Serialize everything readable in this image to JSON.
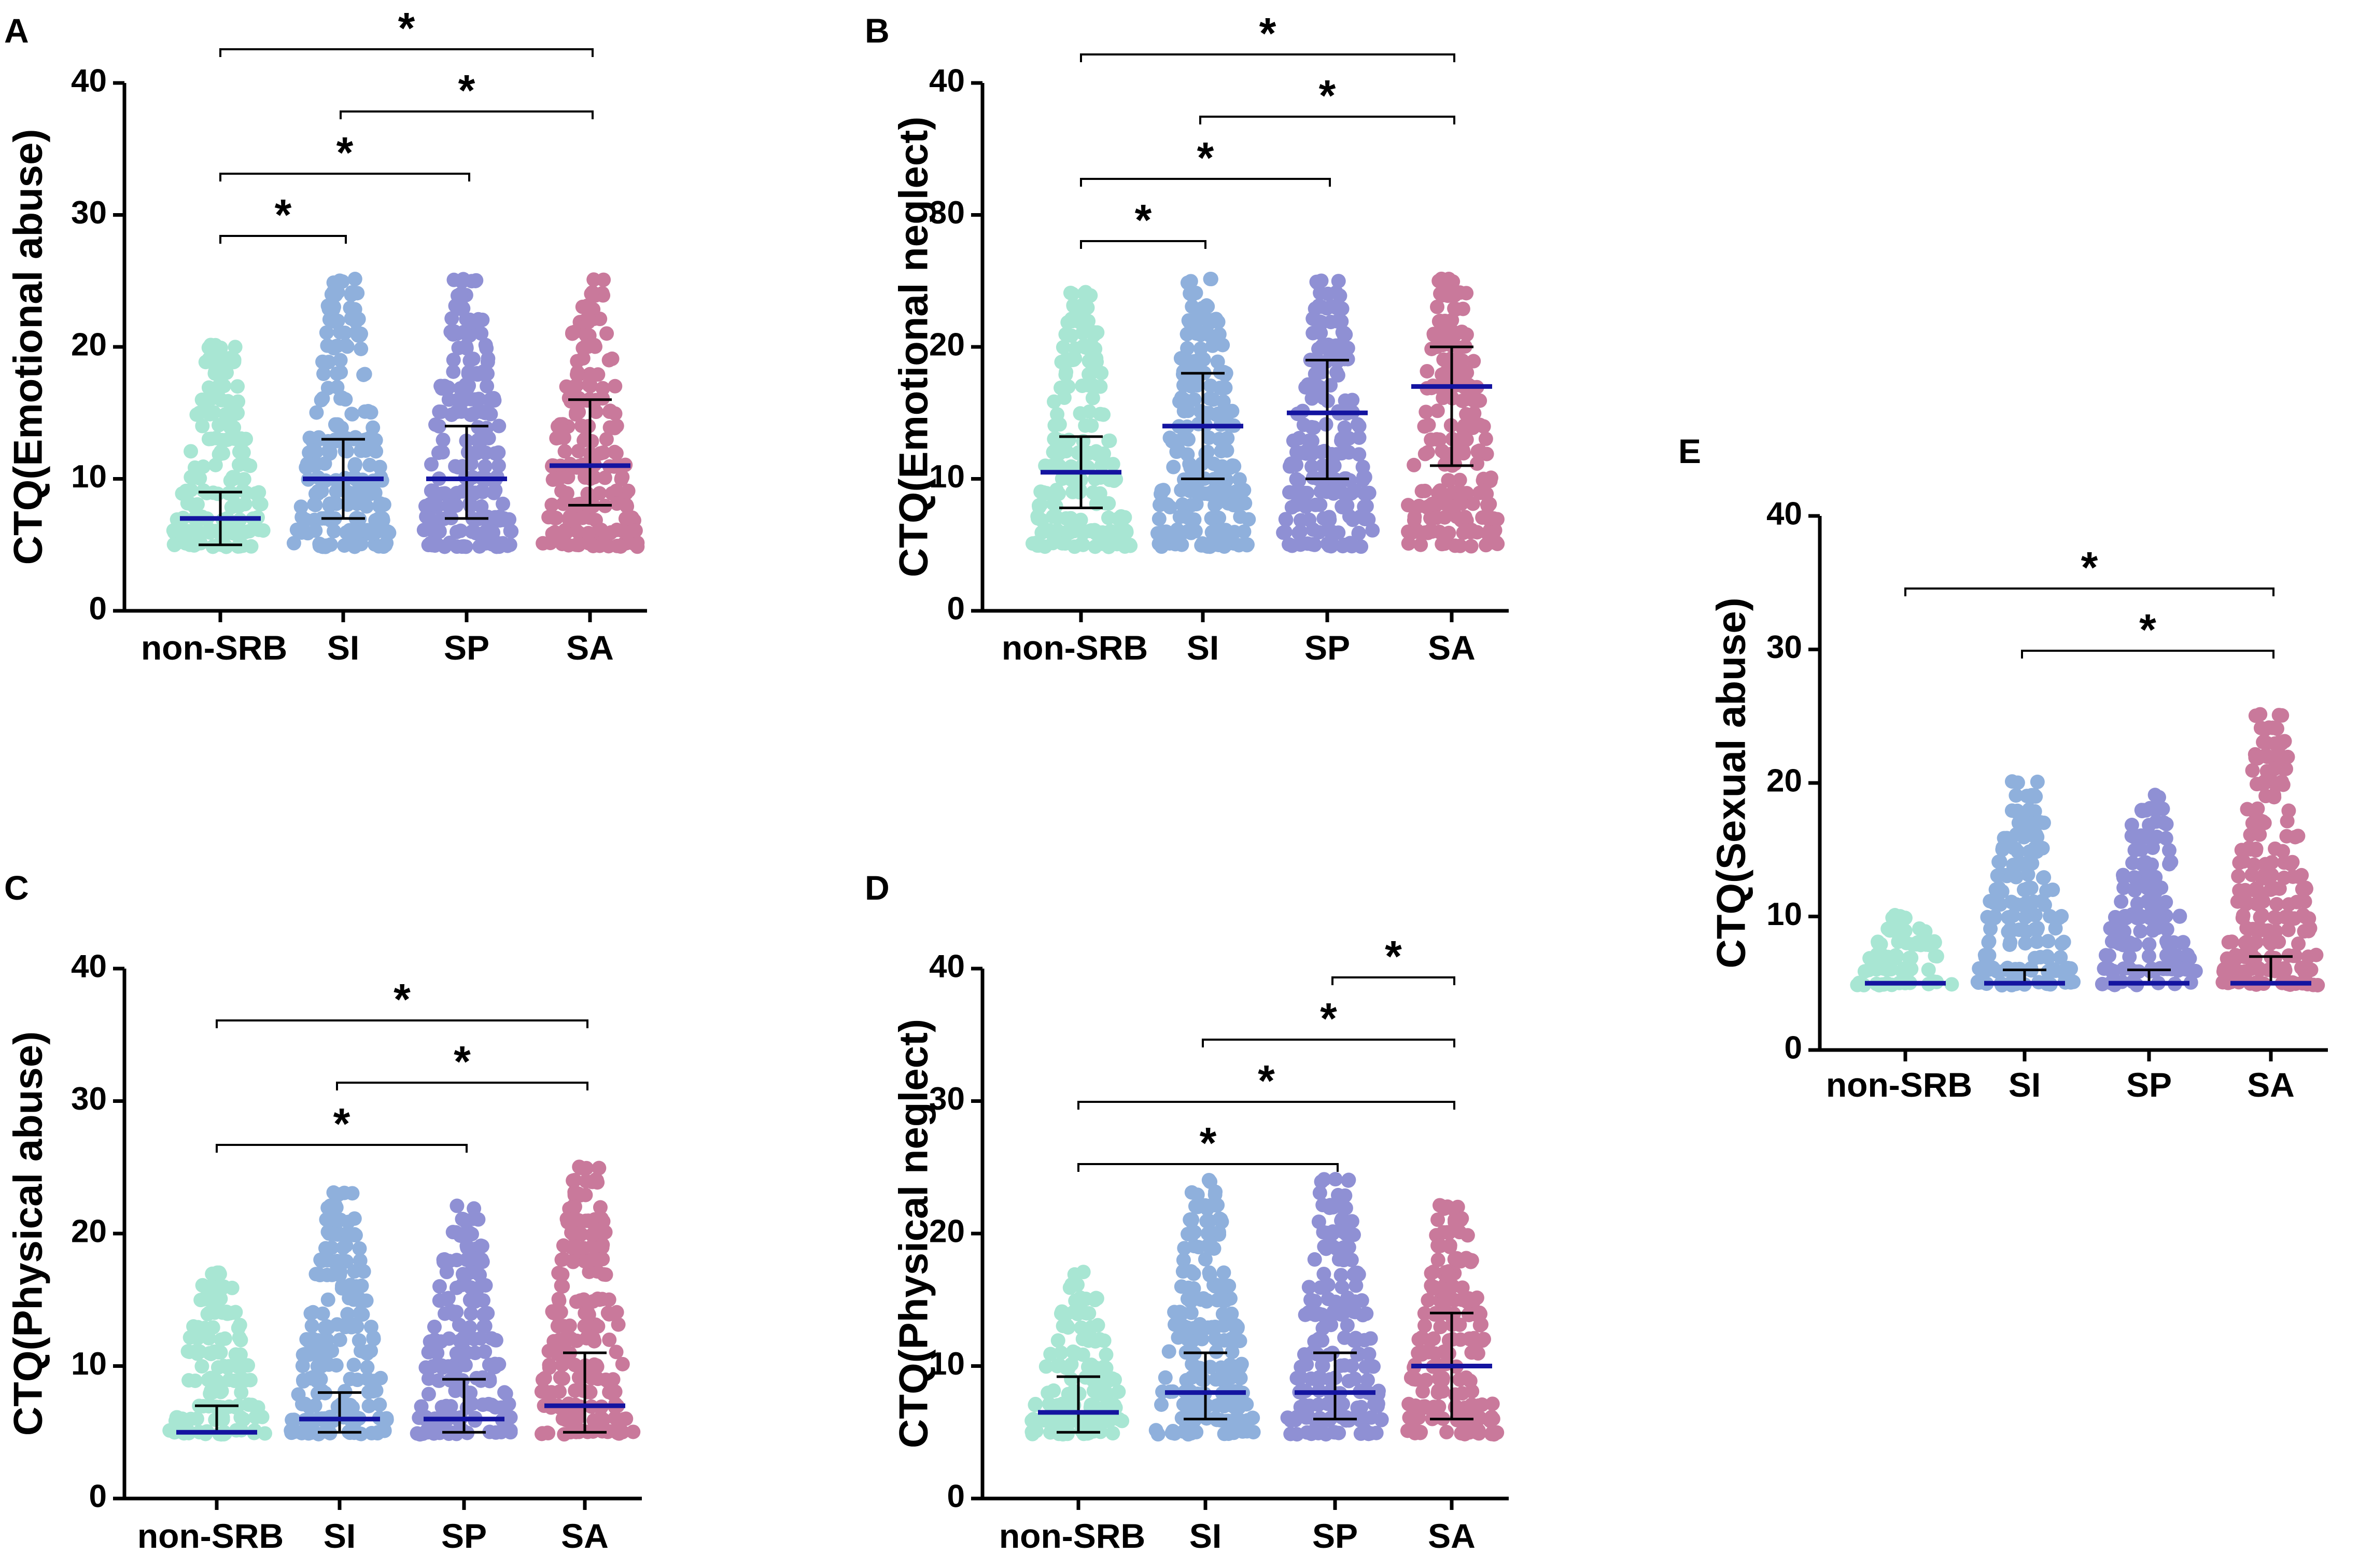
{
  "colors": {
    "non-SRB": "#a8e6d3",
    "SI": "#8fb0dc",
    "SP": "#8f90d4",
    "SA": "#c9799b",
    "mean": "#1414a0",
    "axis": "#000000"
  },
  "chart_data": [
    {
      "type": "scatter",
      "panel": "A",
      "ylabel": "CTQ(Emotional abuse)",
      "categories": [
        "non-SRB",
        "SI",
        "SP",
        "SA"
      ],
      "ylim": [
        0,
        40
      ],
      "yticks": [
        "0",
        "10",
        "20",
        "30",
        "40"
      ],
      "series": [
        {
          "name": "non-SRB",
          "mean": 7,
          "sd_low": 5,
          "sd_high": 9,
          "min": 5,
          "max": 20
        },
        {
          "name": "SI",
          "mean": 10,
          "sd_low": 7,
          "sd_high": 13,
          "min": 5,
          "max": 25
        },
        {
          "name": "SP",
          "mean": 10,
          "sd_low": 7,
          "sd_high": 14,
          "min": 5,
          "max": 25
        },
        {
          "name": "SA",
          "mean": 11,
          "sd_low": 8,
          "sd_high": 16,
          "min": 5,
          "max": 25
        }
      ],
      "significance": [
        {
          "from": "non-SRB",
          "to": "SI",
          "label": "*"
        },
        {
          "from": "non-SRB",
          "to": "SP",
          "label": "*"
        },
        {
          "from": "non-SRB",
          "to": "SA",
          "label": "*"
        },
        {
          "from": "SI",
          "to": "SA",
          "label": "*"
        }
      ]
    },
    {
      "type": "scatter",
      "panel": "B",
      "ylabel": "CTQ(Emotional neglect)",
      "categories": [
        "non-SRB",
        "SI",
        "SP",
        "SA"
      ],
      "ylim": [
        0,
        40
      ],
      "yticks": [
        "0",
        "10",
        "20",
        "30",
        "40"
      ],
      "series": [
        {
          "name": "non-SRB",
          "mean": 10.5,
          "sd_low": 7.8,
          "sd_high": 13.2,
          "min": 5,
          "max": 24
        },
        {
          "name": "SI",
          "mean": 14,
          "sd_low": 10,
          "sd_high": 18,
          "min": 5,
          "max": 25
        },
        {
          "name": "SP",
          "mean": 15,
          "sd_low": 10,
          "sd_high": 19,
          "min": 5,
          "max": 25
        },
        {
          "name": "SA",
          "mean": 17,
          "sd_low": 11,
          "sd_high": 20,
          "min": 5,
          "max": 25
        }
      ],
      "significance": [
        {
          "from": "non-SRB",
          "to": "SI",
          "label": "*"
        },
        {
          "from": "non-SRB",
          "to": "SP",
          "label": "*"
        },
        {
          "from": "non-SRB",
          "to": "SA",
          "label": "*"
        },
        {
          "from": "SI",
          "to": "SA",
          "label": "*"
        }
      ]
    },
    {
      "type": "scatter",
      "panel": "C",
      "ylabel": "CTQ(Physical abuse)",
      "categories": [
        "non-SRB",
        "SI",
        "SP",
        "SA"
      ],
      "ylim": [
        0,
        40
      ],
      "yticks": [
        "0",
        "10",
        "20",
        "30",
        "40"
      ],
      "series": [
        {
          "name": "non-SRB",
          "mean": 5,
          "sd_low": 5,
          "sd_high": 7,
          "min": 5,
          "max": 17
        },
        {
          "name": "SI",
          "mean": 6,
          "sd_low": 5,
          "sd_high": 8,
          "min": 5,
          "max": 23
        },
        {
          "name": "SP",
          "mean": 6,
          "sd_low": 5,
          "sd_high": 9,
          "min": 5,
          "max": 22
        },
        {
          "name": "SA",
          "mean": 7,
          "sd_low": 5,
          "sd_high": 11,
          "min": 5,
          "max": 25
        }
      ],
      "significance": [
        {
          "from": "non-SRB",
          "to": "SP",
          "label": "*"
        },
        {
          "from": "non-SRB",
          "to": "SA",
          "label": "*"
        },
        {
          "from": "SI",
          "to": "SA",
          "label": "*"
        }
      ]
    },
    {
      "type": "scatter",
      "panel": "D",
      "ylabel": "CTQ(Physical neglect)",
      "categories": [
        "non-SRB",
        "SI",
        "SP",
        "SA"
      ],
      "ylim": [
        0,
        40
      ],
      "yticks": [
        "0",
        "10",
        "20",
        "30",
        "40"
      ],
      "series": [
        {
          "name": "non-SRB",
          "mean": 6.5,
          "sd_low": 5,
          "sd_high": 9.2,
          "min": 5,
          "max": 17
        },
        {
          "name": "SI",
          "mean": 8,
          "sd_low": 6,
          "sd_high": 11,
          "min": 5,
          "max": 24
        },
        {
          "name": "SP",
          "mean": 8,
          "sd_low": 6,
          "sd_high": 11,
          "min": 5,
          "max": 24
        },
        {
          "name": "SA",
          "mean": 10,
          "sd_low": 6,
          "sd_high": 14,
          "min": 5,
          "max": 22
        }
      ],
      "significance": [
        {
          "from": "non-SRB",
          "to": "SP",
          "label": "*"
        },
        {
          "from": "non-SRB",
          "to": "SA",
          "label": "*"
        },
        {
          "from": "SI",
          "to": "SA",
          "label": "*"
        },
        {
          "from": "SP",
          "to": "SA",
          "label": "*"
        }
      ]
    },
    {
      "type": "scatter",
      "panel": "E",
      "ylabel": "CTQ(Sexual abuse)",
      "categories": [
        "non-SRB",
        "SI",
        "SP",
        "SA"
      ],
      "ylim": [
        0,
        40
      ],
      "yticks": [
        "0",
        "10",
        "20",
        "30",
        "40"
      ],
      "series": [
        {
          "name": "non-SRB",
          "mean": 5,
          "sd_low": 5,
          "sd_high": 5,
          "min": 5,
          "max": 10
        },
        {
          "name": "SI",
          "mean": 5,
          "sd_low": 5,
          "sd_high": 6,
          "min": 5,
          "max": 20
        },
        {
          "name": "SP",
          "mean": 5,
          "sd_low": 5,
          "sd_high": 6,
          "min": 5,
          "max": 19
        },
        {
          "name": "SA",
          "mean": 5,
          "sd_low": 5,
          "sd_high": 7,
          "min": 5,
          "max": 25
        }
      ],
      "significance": [
        {
          "from": "non-SRB",
          "to": "SA",
          "label": "*"
        },
        {
          "from": "SI",
          "to": "SA",
          "label": "*"
        }
      ]
    }
  ]
}
